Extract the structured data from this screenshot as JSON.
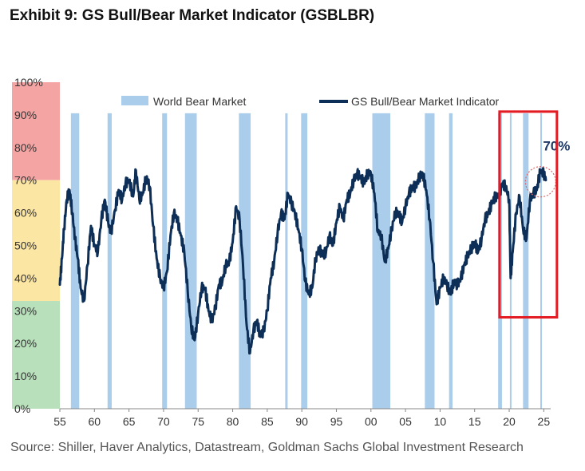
{
  "title": "Exhibit 9: GS Bull/Bear Market Indicator (GSBLBR)",
  "source": "Source: Shiller, Haver Analytics, Datastream, Goldman Sachs Global Investment Research",
  "colors": {
    "line": "#0d2f57",
    "bear_band": "#a9cdea",
    "zone_red": "#f4a5a3",
    "zone_yellow": "#fce6a4",
    "zone_green": "#b8e0bb",
    "highlight_box": "#e31b23",
    "annotation": "#1f3a66",
    "marker_circle": "#e06666"
  },
  "chart_data": {
    "type": "line",
    "title": "Exhibit 9: GS Bull/Bear Market Indicator (GSBLBR)",
    "xlabel": "",
    "ylabel": "",
    "xlim": [
      1955,
      2026
    ],
    "ylim": [
      0,
      100
    ],
    "x_ticks": [
      1955,
      1960,
      1965,
      1970,
      1975,
      1980,
      1985,
      1990,
      1995,
      2000,
      2005,
      2010,
      2015,
      2020,
      2025
    ],
    "x_tick_labels": [
      "55",
      "60",
      "65",
      "70",
      "75",
      "80",
      "85",
      "90",
      "95",
      "00",
      "05",
      "10",
      "15",
      "20",
      "25"
    ],
    "y_ticks": [
      0,
      10,
      20,
      30,
      40,
      50,
      60,
      70,
      80,
      90,
      100
    ],
    "y_tick_labels": [
      "0%",
      "10%",
      "20%",
      "30%",
      "40%",
      "50%",
      "60%",
      "70%",
      "80%",
      "90%",
      "100%"
    ],
    "zones": [
      {
        "from": 70,
        "to": 100,
        "color": "red"
      },
      {
        "from": 33,
        "to": 70,
        "color": "yellow"
      },
      {
        "from": 0,
        "to": 33,
        "color": "green"
      }
    ],
    "legend": [
      {
        "label": "World Bear Market",
        "kind": "band"
      },
      {
        "label": "GS Bull/Bear Market Indicator",
        "kind": "line"
      }
    ],
    "bear_markets": [
      [
        1956.6,
        1957.8
      ],
      [
        1961.9,
        1962.5
      ],
      [
        1969.8,
        1970.5
      ],
      [
        1973.1,
        1974.8
      ],
      [
        1980.9,
        1982.6
      ],
      [
        1987.6,
        1987.95
      ],
      [
        1989.9,
        1990.8
      ],
      [
        2000.2,
        2002.8
      ],
      [
        2007.8,
        2009.2
      ],
      [
        2011.3,
        2011.8
      ],
      [
        2018.4,
        2018.95
      ],
      [
        2020.1,
        2020.3
      ],
      [
        2022.0,
        2022.8
      ],
      [
        2024.5,
        2024.7
      ]
    ],
    "series": [
      {
        "name": "GS Bull/Bear Market Indicator",
        "x": [
          1955.0,
          1955.3,
          1955.6,
          1956.0,
          1956.4,
          1956.8,
          1957.2,
          1957.6,
          1958.0,
          1958.5,
          1959.0,
          1959.5,
          1960.0,
          1960.5,
          1961.0,
          1961.5,
          1962.0,
          1962.4,
          1963.0,
          1963.5,
          1964.0,
          1964.5,
          1965.0,
          1965.6,
          1966.0,
          1966.5,
          1967.0,
          1967.5,
          1968.0,
          1968.5,
          1969.0,
          1969.5,
          1970.0,
          1970.5,
          1971.0,
          1971.5,
          1972.0,
          1972.5,
          1973.0,
          1973.5,
          1974.0,
          1974.5,
          1975.0,
          1975.5,
          1976.0,
          1976.5,
          1977.0,
          1977.5,
          1978.0,
          1978.5,
          1979.0,
          1979.5,
          1980.0,
          1980.5,
          1981.0,
          1981.5,
          1982.0,
          1982.5,
          1983.0,
          1983.5,
          1984.0,
          1984.5,
          1985.0,
          1985.5,
          1986.0,
          1986.5,
          1987.0,
          1987.5,
          1988.0,
          1988.5,
          1989.0,
          1989.5,
          1990.0,
          1990.5,
          1991.0,
          1991.5,
          1992.0,
          1992.5,
          1993.0,
          1993.5,
          1994.0,
          1994.5,
          1995.0,
          1995.5,
          1996.0,
          1996.5,
          1997.0,
          1997.5,
          1998.0,
          1998.5,
          1999.0,
          1999.5,
          2000.0,
          2000.5,
          2001.0,
          2001.5,
          2002.0,
          2002.5,
          2003.0,
          2003.5,
          2004.0,
          2004.5,
          2005.0,
          2005.5,
          2006.0,
          2006.5,
          2007.0,
          2007.5,
          2008.0,
          2008.5,
          2009.0,
          2009.5,
          2010.0,
          2010.5,
          2011.0,
          2011.5,
          2012.0,
          2012.5,
          2013.0,
          2013.5,
          2014.0,
          2014.5,
          2015.0,
          2015.5,
          2016.0,
          2016.5,
          2017.0,
          2017.5,
          2018.0,
          2018.5,
          2019.0,
          2019.5,
          2020.0,
          2020.2,
          2020.5,
          2021.0,
          2021.5,
          2022.0,
          2022.5,
          2023.0,
          2023.5,
          2024.0,
          2024.5,
          2025.0,
          2025.3
        ],
        "values": [
          38,
          46,
          55,
          64,
          67,
          60,
          52,
          46,
          37,
          33,
          44,
          56,
          50,
          48,
          58,
          64,
          57,
          54,
          61,
          67,
          64,
          69,
          70,
          65,
          73,
          64,
          66,
          71,
          68,
          56,
          46,
          40,
          37,
          42,
          53,
          60,
          58,
          53,
          48,
          36,
          25,
          21,
          29,
          37,
          37,
          30,
          27,
          31,
          38,
          39,
          44,
          45,
          51,
          62,
          58,
          44,
          26,
          17,
          24,
          27,
          22,
          24,
          30,
          40,
          45,
          54,
          60,
          58,
          66,
          63,
          60,
          55,
          49,
          39,
          35,
          37,
          46,
          49,
          47,
          48,
          53,
          50,
          57,
          62,
          58,
          64,
          66,
          70,
          72,
          71,
          69,
          72,
          72,
          66,
          54,
          53,
          45,
          49,
          55,
          60,
          60,
          57,
          62,
          66,
          68,
          68,
          71,
          72,
          67,
          58,
          45,
          32,
          37,
          40,
          38,
          35,
          39,
          38,
          40,
          44,
          47,
          49,
          51,
          48,
          52,
          58,
          60,
          63,
          65,
          65,
          69,
          68,
          64,
          40,
          48,
          60,
          65,
          55,
          52,
          64,
          66,
          67,
          73,
          72,
          70
        ]
      }
    ],
    "annotations": [
      {
        "text": "70%",
        "x": 2025.0,
        "value": 70
      }
    ],
    "highlight_range": {
      "x": [
        2018.6,
        2026.9
      ],
      "y": [
        28,
        91
      ]
    }
  }
}
